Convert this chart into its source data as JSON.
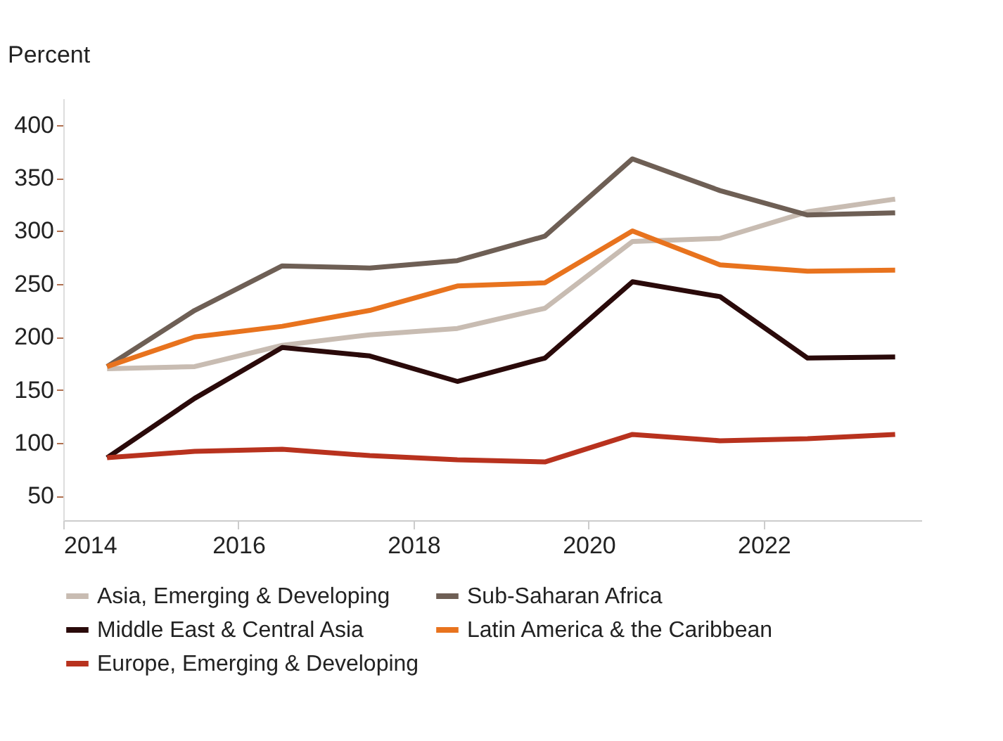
{
  "chart_data": {
    "type": "line",
    "ylabel": "Percent",
    "x": [
      2014.5,
      2015.5,
      2016.5,
      2017.5,
      2018.5,
      2019.5,
      2020.5,
      2021.5,
      2022.5,
      2023.5
    ],
    "series": [
      {
        "name": "Asia, Emerging & Developing",
        "color": "#c8bcb2",
        "values": [
          170,
          172,
          192,
          202,
          208,
          227,
          290,
          293,
          318,
          330
        ]
      },
      {
        "name": "Sub-Saharan Africa",
        "color": "#6e5f55",
        "values": [
          172,
          225,
          267,
          265,
          272,
          295,
          368,
          338,
          315,
          317
        ]
      },
      {
        "name": "Middle East & Central Asia",
        "color": "#2a0a0a",
        "values": [
          86,
          142,
          190,
          182,
          158,
          180,
          252,
          238,
          180,
          181
        ]
      },
      {
        "name": "Latin America & the Caribbean",
        "color": "#e8731e",
        "values": [
          172,
          200,
          210,
          225,
          248,
          251,
          300,
          268,
          262,
          263
        ]
      },
      {
        "name": "Europe, Emerging & Developing",
        "color": "#b8321e",
        "values": [
          86,
          92,
          94,
          88,
          84,
          82,
          108,
          102,
          104,
          108
        ]
      }
    ],
    "xlim": [
      2014,
      2023.8
    ],
    "xticks": [
      2014,
      2016,
      2018,
      2020,
      2022
    ],
    "ylim": [
      27,
      425
    ],
    "yticks": [
      50,
      100,
      150,
      200,
      250,
      300,
      350,
      400
    ],
    "grid": false,
    "legend": "bottom",
    "marker": "none",
    "line_style": "solid"
  }
}
